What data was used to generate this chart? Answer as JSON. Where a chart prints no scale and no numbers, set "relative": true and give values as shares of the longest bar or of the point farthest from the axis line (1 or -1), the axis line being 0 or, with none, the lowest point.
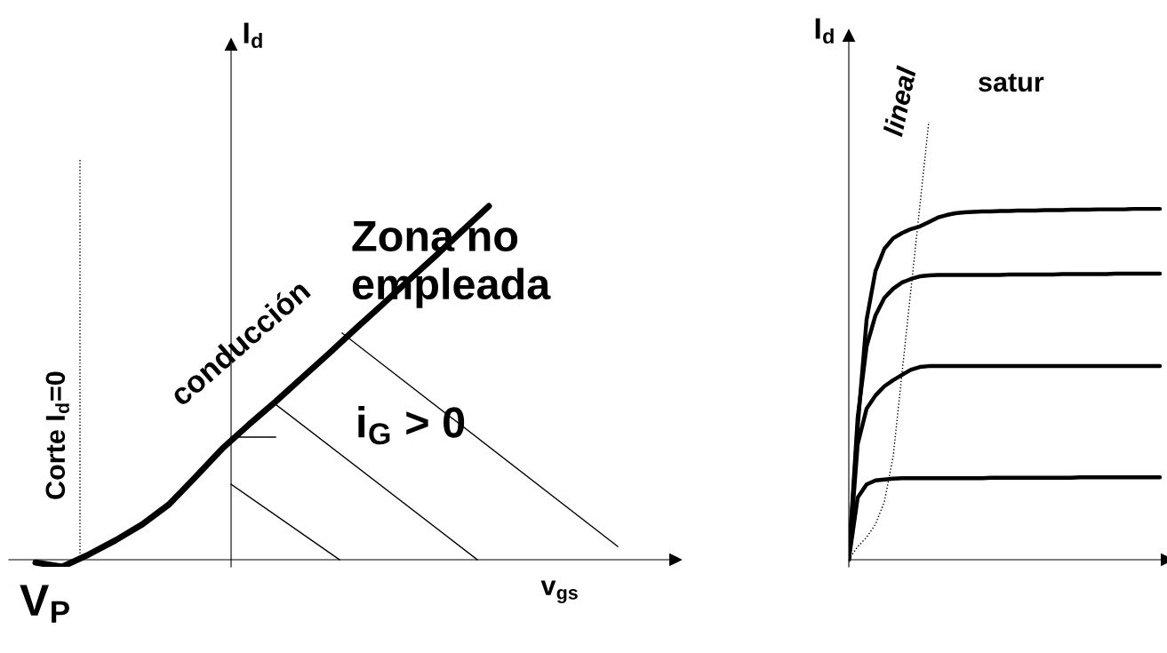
{
  "chart_data": [
    {
      "type": "line",
      "relative": true,
      "xlabel": "v$_{gs}$",
      "ylabel": "I$_{d}$",
      "categories": [
        null,
        null,
        null,
        null,
        null,
        null,
        null,
        null,
        null,
        null,
        null,
        null,
        null,
        null,
        null,
        null,
        null,
        null,
        null,
        null,
        null,
        null,
        null,
        null,
        null,
        null
      ],
      "series": [
        {
          "color": "#000000",
          "line_style": "solid",
          "values": [
            null,
            -0.008,
            -0.02,
            0.015,
            0.055,
            0.1,
            0.156,
            0.234,
            0.314,
            0.382,
            0.447,
            0.515,
            0.583,
            0.653,
            0.721,
            0.791,
            0.859,
            0.93,
            1,
            null,
            null,
            null,
            null,
            null,
            null,
            null
          ]
        }
      ],
      "annotations": [
        "Corte I$_{d}$=0",
        "conducción",
        "Zona no\nempleada",
        "i$_{G}$ > 0",
        "V$_{P}$"
      ]
    },
    {
      "type": "line",
      "relative": true,
      "ylabel": "I$_{d}$",
      "categories": [
        null,
        null,
        null,
        null,
        null,
        null,
        null,
        null,
        null,
        null,
        null,
        null,
        null,
        null,
        null,
        null,
        null,
        null,
        null,
        null,
        null,
        null,
        null,
        null,
        null,
        null,
        null,
        null,
        null,
        null,
        null,
        null,
        null,
        null,
        null,
        null
      ],
      "series": [
        {
          "color": "#000000",
          "line_style": "dotted",
          "values": [
            0,
            0.03,
            0.051,
            0.081,
            0.132,
            0.237,
            0.428,
            0.619,
            0.809,
            1,
            null,
            null,
            null,
            null,
            null,
            null,
            null,
            null,
            null,
            null,
            null,
            null,
            null,
            null,
            null,
            null,
            null,
            null,
            null,
            null,
            null,
            null,
            null,
            null,
            null,
            null
          ]
        },
        {
          "color": "#000000",
          "line_style": "solid",
          "values": [
            0,
            0.304,
            0.548,
            0.659,
            0.71,
            0.734,
            0.746,
            0.755,
            0.761,
            0.771,
            0.781,
            0.787,
            0.791,
            0.793,
            0.794,
            0.795,
            0.795,
            0.796,
            0.796,
            0.797,
            0.797,
            0.797,
            0.798,
            0.798,
            0.798,
            0.799,
            0.799,
            0.799,
            0.8,
            0.8,
            0.8,
            0.8,
            0.801,
            0.801,
            0.801,
            0.801
          ]
        },
        {
          "color": "#000000",
          "line_style": "solid",
          "values": [
            0,
            0.325,
            0.487,
            0.558,
            0.598,
            0.619,
            0.633,
            0.641,
            0.647,
            0.649,
            0.65,
            0.65,
            0.65,
            0.65,
            0.65,
            0.65,
            0.65,
            0.65,
            0.651,
            0.651,
            0.651,
            0.651,
            0.651,
            0.651,
            0.652,
            0.652,
            0.652,
            0.652,
            0.652,
            0.652,
            0.653,
            0.653,
            0.653,
            0.653,
            0.653,
            0.653
          ]
        },
        {
          "color": "#000000",
          "line_style": "solid",
          "values": [
            0,
            0.264,
            0.345,
            0.375,
            0.396,
            0.41,
            0.422,
            0.434,
            0.44,
            0.442,
            0.442,
            0.442,
            0.442,
            0.442,
            0.442,
            0.442,
            0.442,
            0.442,
            0.442,
            0.442,
            0.442,
            0.442,
            0.442,
            0.442,
            0.442,
            0.442,
            0.442,
            0.442,
            0.442,
            0.442,
            0.442,
            0.442,
            0.442,
            0.442,
            0.442,
            0.442
          ]
        },
        {
          "color": "#000000",
          "line_style": "solid",
          "values": [
            0,
            0.142,
            0.172,
            0.181,
            0.183,
            0.185,
            0.186,
            0.186,
            0.186,
            0.186,
            0.186,
            0.186,
            0.186,
            0.186,
            0.186,
            0.186,
            0.187,
            0.187,
            0.187,
            0.187,
            0.187,
            0.187,
            0.187,
            0.187,
            0.187,
            0.187,
            0.188,
            0.188,
            0.188,
            0.188,
            0.188,
            0.188,
            0.188,
            0.188,
            0.188,
            0.188
          ]
        }
      ],
      "annotations": [
        "lineal",
        "satur"
      ]
    }
  ]
}
